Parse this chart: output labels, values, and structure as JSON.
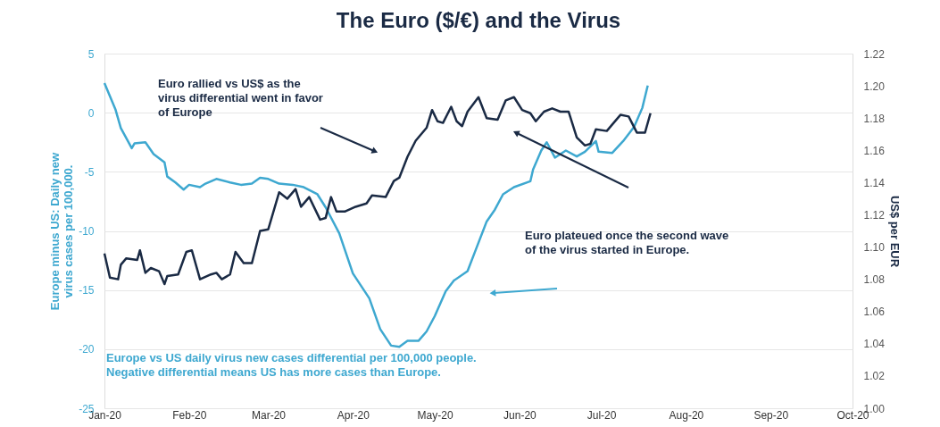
{
  "chart_data": {
    "type": "line",
    "title": "The Euro ($/€) and the Virus",
    "ylabel": "Europe minus US: Daily new\nvirus cases per 100,000.",
    "y2label": "US$ per EUR",
    "annotations": [
      "Euro rallied vs US$ as the\nvirus differential went in favor\nof Europe",
      "Euro plateued once the second wave\nof the virus started in Europe.",
      "Europe vs US daily virus new cases differential per 100,000 people.\nNegative differential means US has more cases than Europe."
    ],
    "xlim": [
      "2020-01-01",
      "2020-10-01"
    ],
    "xticks": [
      {
        "value": "2020-01-01",
        "label": "Jan-20"
      },
      {
        "value": "2020-02-01",
        "label": "Feb-20"
      },
      {
        "value": "2020-03-01",
        "label": "Mar-20"
      },
      {
        "value": "2020-04-01",
        "label": "Apr-20"
      },
      {
        "value": "2020-05-01",
        "label": "May-20"
      },
      {
        "value": "2020-06-01",
        "label": "Jun-20"
      },
      {
        "value": "2020-07-01",
        "label": "Jul-20"
      },
      {
        "value": "2020-08-01",
        "label": "Aug-20"
      },
      {
        "value": "2020-09-01",
        "label": "Sep-20"
      },
      {
        "value": "2020-10-01",
        "label": "Oct-20"
      }
    ],
    "ylim": [
      -25,
      5
    ],
    "yticks": [
      -25,
      -20,
      -15,
      -10,
      -5,
      0,
      5
    ],
    "y2lim": [
      1.0,
      1.22
    ],
    "y2ticks": [
      {
        "value": 1.0,
        "label": "1.00"
      },
      1.02,
      1.04,
      1.06,
      1.08,
      {
        "value": 1.1,
        "label": "1.10"
      },
      1.12,
      1.14,
      1.16,
      1.18,
      {
        "value": 1.2,
        "label": "1.20"
      },
      1.22
    ],
    "grid": "y",
    "line_style": "solid",
    "marker": "none",
    "series": [
      {
        "color": "#3ea8d0",
        "x": [
          "2020-01-01",
          "2020-01-05",
          "2020-01-07",
          "2020-01-11",
          "2020-01-12",
          "2020-01-16",
          "2020-01-19",
          "2020-01-23",
          "2020-01-24",
          "2020-01-27",
          "2020-01-30",
          "2020-02-01",
          "2020-02-05",
          "2020-02-07",
          "2020-02-11",
          "2020-02-16",
          "2020-02-20",
          "2020-02-24",
          "2020-02-27",
          "2020-03-01",
          "2020-03-05",
          "2020-03-10",
          "2020-03-14",
          "2020-03-19",
          "2020-03-22",
          "2020-03-27",
          "2020-04-01",
          "2020-04-07",
          "2020-04-11",
          "2020-04-15",
          "2020-04-18",
          "2020-04-21",
          "2020-04-25",
          "2020-04-28",
          "2020-05-01",
          "2020-05-05",
          "2020-05-08",
          "2020-05-13",
          "2020-05-16",
          "2020-05-20",
          "2020-05-23",
          "2020-05-26",
          "2020-05-30",
          "2020-06-05",
          "2020-06-06",
          "2020-06-09",
          "2020-06-11",
          "2020-06-14",
          "2020-06-18",
          "2020-06-22",
          "2020-06-25",
          "2020-06-29",
          "2020-06-30",
          "2020-07-05",
          "2020-07-09",
          "2020-07-13",
          "2020-07-16",
          "2020-07-18"
        ],
        "values": [
          2.5,
          0.3,
          -1.3,
          -3.0,
          -2.6,
          -2.5,
          -3.5,
          -4.2,
          -5.4,
          -5.9,
          -6.5,
          -6.1,
          -6.3,
          -6.0,
          -5.6,
          -5.9,
          -6.1,
          -6.0,
          -5.5,
          -5.6,
          -6.0,
          -6.1,
          -6.3,
          -6.9,
          -8.0,
          -10.2,
          -13.6,
          -15.7,
          -18.3,
          -19.7,
          -19.8,
          -19.3,
          -19.3,
          -18.5,
          -17.2,
          -15.1,
          -14.2,
          -13.4,
          -11.6,
          -9.2,
          -8.2,
          -6.9,
          -6.3,
          -5.8,
          -4.8,
          -3.2,
          -2.5,
          -3.8,
          -3.2,
          -3.7,
          -3.3,
          -2.4,
          -3.3,
          -3.4,
          -2.4,
          -1.2,
          0.4,
          2.3
        ]
      },
      {
        "color": "#1a2a44",
        "axis": "y2",
        "x": [
          "2020-01-01",
          "2020-01-03",
          "2020-01-06",
          "2020-01-07",
          "2020-01-09",
          "2020-01-13",
          "2020-01-14",
          "2020-01-16",
          "2020-01-18",
          "2020-01-21",
          "2020-01-23",
          "2020-01-24",
          "2020-01-28",
          "2020-01-31",
          "2020-02-02",
          "2020-02-05",
          "2020-02-09",
          "2020-02-11",
          "2020-02-13",
          "2020-02-16",
          "2020-02-18",
          "2020-02-21",
          "2020-02-24",
          "2020-02-27",
          "2020-03-01",
          "2020-03-05",
          "2020-03-08",
          "2020-03-11",
          "2020-03-13",
          "2020-03-16",
          "2020-03-20",
          "2020-03-22",
          "2020-03-24",
          "2020-03-26",
          "2020-03-29",
          "2020-04-02",
          "2020-04-06",
          "2020-04-08",
          "2020-04-13",
          "2020-04-16",
          "2020-04-18",
          "2020-04-21",
          "2020-04-24",
          "2020-04-28",
          "2020-04-30",
          "2020-05-02",
          "2020-05-04",
          "2020-05-07",
          "2020-05-09",
          "2020-05-11",
          "2020-05-13",
          "2020-05-17",
          "2020-05-20",
          "2020-05-24",
          "2020-05-27",
          "2020-05-30",
          "2020-06-02",
          "2020-06-05",
          "2020-06-07",
          "2020-06-10",
          "2020-06-13",
          "2020-06-16",
          "2020-06-19",
          "2020-06-22",
          "2020-06-25",
          "2020-06-27",
          "2020-06-29",
          "2020-07-03",
          "2020-07-05",
          "2020-07-08",
          "2020-07-11",
          "2020-07-14",
          "2020-07-17",
          "2020-07-19"
        ],
        "values": [
          1.096,
          1.081,
          1.08,
          1.089,
          1.093,
          1.092,
          1.098,
          1.084,
          1.087,
          1.085,
          1.077,
          1.082,
          1.083,
          1.097,
          1.098,
          1.08,
          1.083,
          1.084,
          1.08,
          1.083,
          1.097,
          1.09,
          1.09,
          1.11,
          1.111,
          1.134,
          1.13,
          1.136,
          1.125,
          1.131,
          1.117,
          1.118,
          1.131,
          1.122,
          1.122,
          1.125,
          1.127,
          1.132,
          1.131,
          1.141,
          1.143,
          1.156,
          1.166,
          1.174,
          1.185,
          1.178,
          1.177,
          1.187,
          1.178,
          1.175,
          1.184,
          1.193,
          1.18,
          1.179,
          1.191,
          1.193,
          1.185,
          1.183,
          1.178,
          1.184,
          1.186,
          1.184,
          1.184,
          1.168,
          1.163,
          1.164,
          1.173,
          1.172,
          1.176,
          1.182,
          1.181,
          1.171,
          1.171,
          1.183
        ]
      }
    ]
  }
}
